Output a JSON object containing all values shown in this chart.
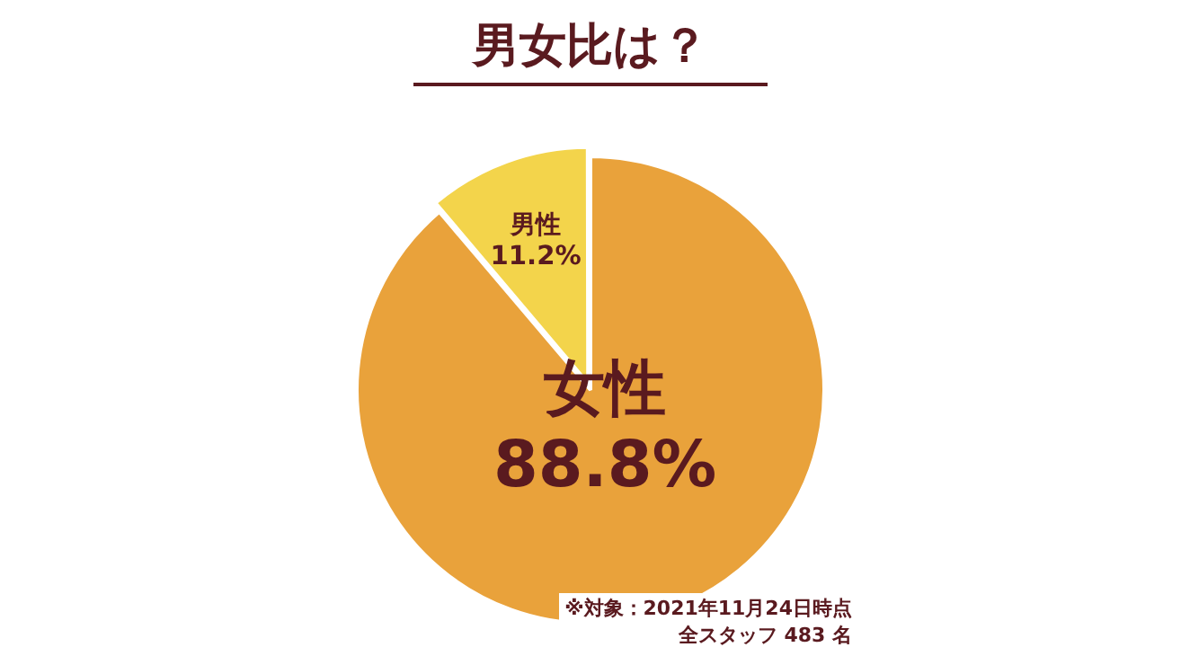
{
  "chart_data": {
    "type": "pie",
    "title": "男女比は？",
    "categories": [
      "女性",
      "男性"
    ],
    "values": [
      88.8,
      11.2
    ],
    "value_labels": [
      "88.8%",
      "11.2%"
    ],
    "colors": [
      "#e9a23b",
      "#f3d44b"
    ],
    "annotations": [
      "※対象：2021年11月24日時点",
      "全スタッフ 483 名"
    ]
  }
}
